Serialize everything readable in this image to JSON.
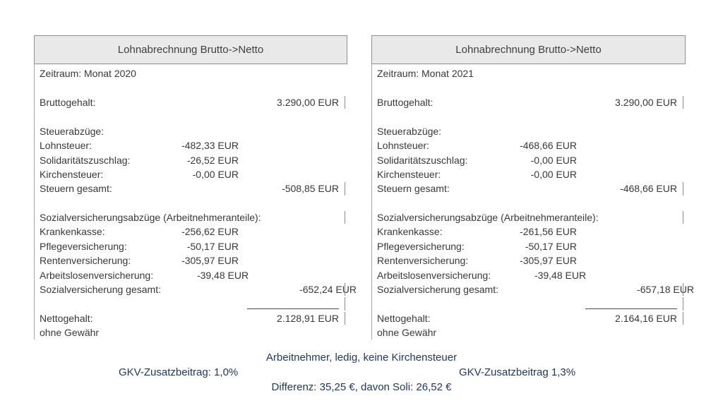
{
  "page": {
    "background": "#ffffff",
    "text_color": "#383838",
    "header_fill": "#e9e9e9"
  },
  "panels": [
    {
      "title": "Lohnabrechnung Brutto->Netto",
      "rows": [
        {
          "label": "Zeitraum: Monat 2020"
        },
        {},
        {
          "label": "Bruttogehalt:",
          "total": "3.290,00 EUR",
          "tick": true
        },
        {},
        {
          "label": "Steuerabzüge:"
        },
        {
          "label": "Lohnsteuer:",
          "mid": "-482,33 EUR"
        },
        {
          "label": "Solidaritätszuschlag:",
          "mid": "-26,52 EUR"
        },
        {
          "label": "Kirchensteuer:",
          "mid": "-0,00 EUR"
        },
        {
          "label": "Steuern gesamt:",
          "total": "-508,85 EUR",
          "tick": true
        },
        {},
        {
          "label": "Sozialversicherungsabzüge (Arbeitnehmeranteile):",
          "tick": true
        },
        {
          "label": "Krankenkasse:",
          "mid": "-256,62 EUR"
        },
        {
          "label": "Pflegeversicherung:",
          "mid": "-50,17 EUR"
        },
        {
          "label": "Rentenversicherung:",
          "mid": "-305,97 EUR"
        },
        {
          "label": "Arbeitslosenversicherung:",
          "mid": "-39,48 EUR"
        },
        {
          "label": "Sozialversicherung gesamt:",
          "total": "-652,24 EUR",
          "tick": true
        },
        {
          "rule": true,
          "tick": true
        },
        {
          "label": "Nettogehalt:",
          "total": "2.128,91 EUR",
          "tick": true
        },
        {
          "label": "ohne Gewähr"
        }
      ]
    },
    {
      "title": "Lohnabrechnung Brutto->Netto",
      "rows": [
        {
          "label": "Zeitraum: Monat 2021"
        },
        {},
        {
          "label": "Bruttogehalt:",
          "total": "3.290,00 EUR",
          "tick": true
        },
        {},
        {
          "label": "Steuerabzüge:"
        },
        {
          "label": "Lohnsteuer:",
          "mid": "-468,66 EUR"
        },
        {
          "label": "Solidaritätszuschlag:",
          "mid": "-0,00 EUR"
        },
        {
          "label": "Kirchensteuer:",
          "mid": "-0,00 EUR"
        },
        {
          "label": "Steuern gesamt:",
          "total": "-468,66 EUR",
          "tick": true
        },
        {},
        {
          "label": "Sozialversicherungsabzüge (Arbeitnehmeranteile):",
          "tick": true
        },
        {
          "label": "Krankenkasse:",
          "mid": "-261,56 EUR"
        },
        {
          "label": "Pflegeversicherung:",
          "mid": "-50,17 EUR"
        },
        {
          "label": "Rentenversicherung:",
          "mid": "-305,97 EUR"
        },
        {
          "label": "Arbeitslosenversicherung:",
          "mid": "-39,48 EUR"
        },
        {
          "label": "Sozialversicherung gesamt:",
          "total": "-657,18 EUR",
          "tick": true
        },
        {
          "rule": true,
          "tick": true
        },
        {
          "label": "Nettogehalt:",
          "total": "2.164,16 EUR",
          "tick": true
        },
        {
          "label": "ohne Gewähr"
        }
      ]
    }
  ],
  "footer": {
    "text_color": "#1f3864",
    "scenario": "Arbeitnehmer, ledig, keine Kirchensteuer",
    "gkv_left": "GKV-Zusatzbeitrag: 1,0%",
    "gkv_right": "GKV-Zusatzbeitrag 1,3%",
    "difference": "Differenz: 35,25 €, davon Soli: 26,52 €"
  }
}
